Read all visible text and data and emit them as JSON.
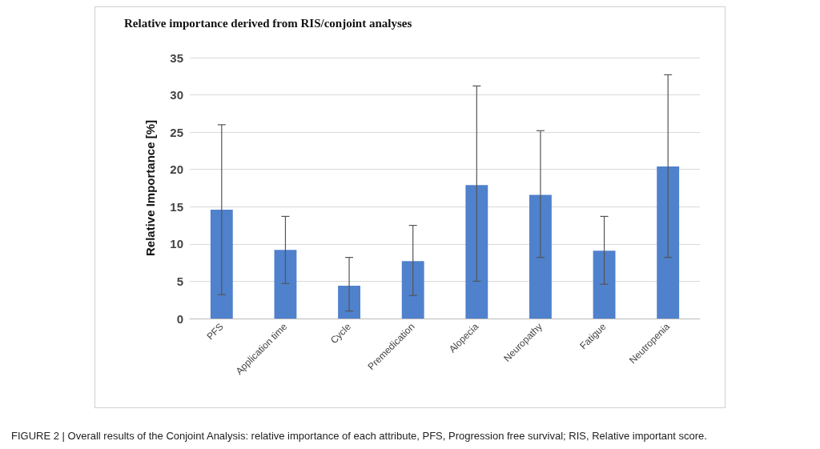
{
  "chart_data": {
    "type": "bar",
    "title": "Relative importance derived from RIS/conjoint analyses",
    "ylabel": "Relative Importance [%]",
    "categories": [
      "PFS",
      "Application time",
      "Cycle",
      "Premedication",
      "Alopecia",
      "Neuropathy",
      "Fatigue",
      "Neutropenia"
    ],
    "values": [
      14.6,
      9.2,
      4.4,
      7.7,
      17.9,
      16.6,
      9.1,
      20.4
    ],
    "errors": [
      [
        3.2,
        26.0
      ],
      [
        4.7,
        13.7
      ],
      [
        1.0,
        8.2
      ],
      [
        3.1,
        12.5
      ],
      [
        5.0,
        31.2
      ],
      [
        8.2,
        25.2
      ],
      [
        4.6,
        13.7
      ],
      [
        8.2,
        32.7
      ]
    ],
    "color": "#4f81cd",
    "ylim": [
      0,
      35
    ],
    "yticks": [
      0,
      5,
      10,
      15,
      20,
      25,
      30,
      35
    ],
    "grid": "y",
    "annotations": [
      "FIGURE 2 | Overall results of the Conjoint Analysis: relative importance of each attribute, PFS, Progression free survival; RIS, Relative important score."
    ]
  }
}
